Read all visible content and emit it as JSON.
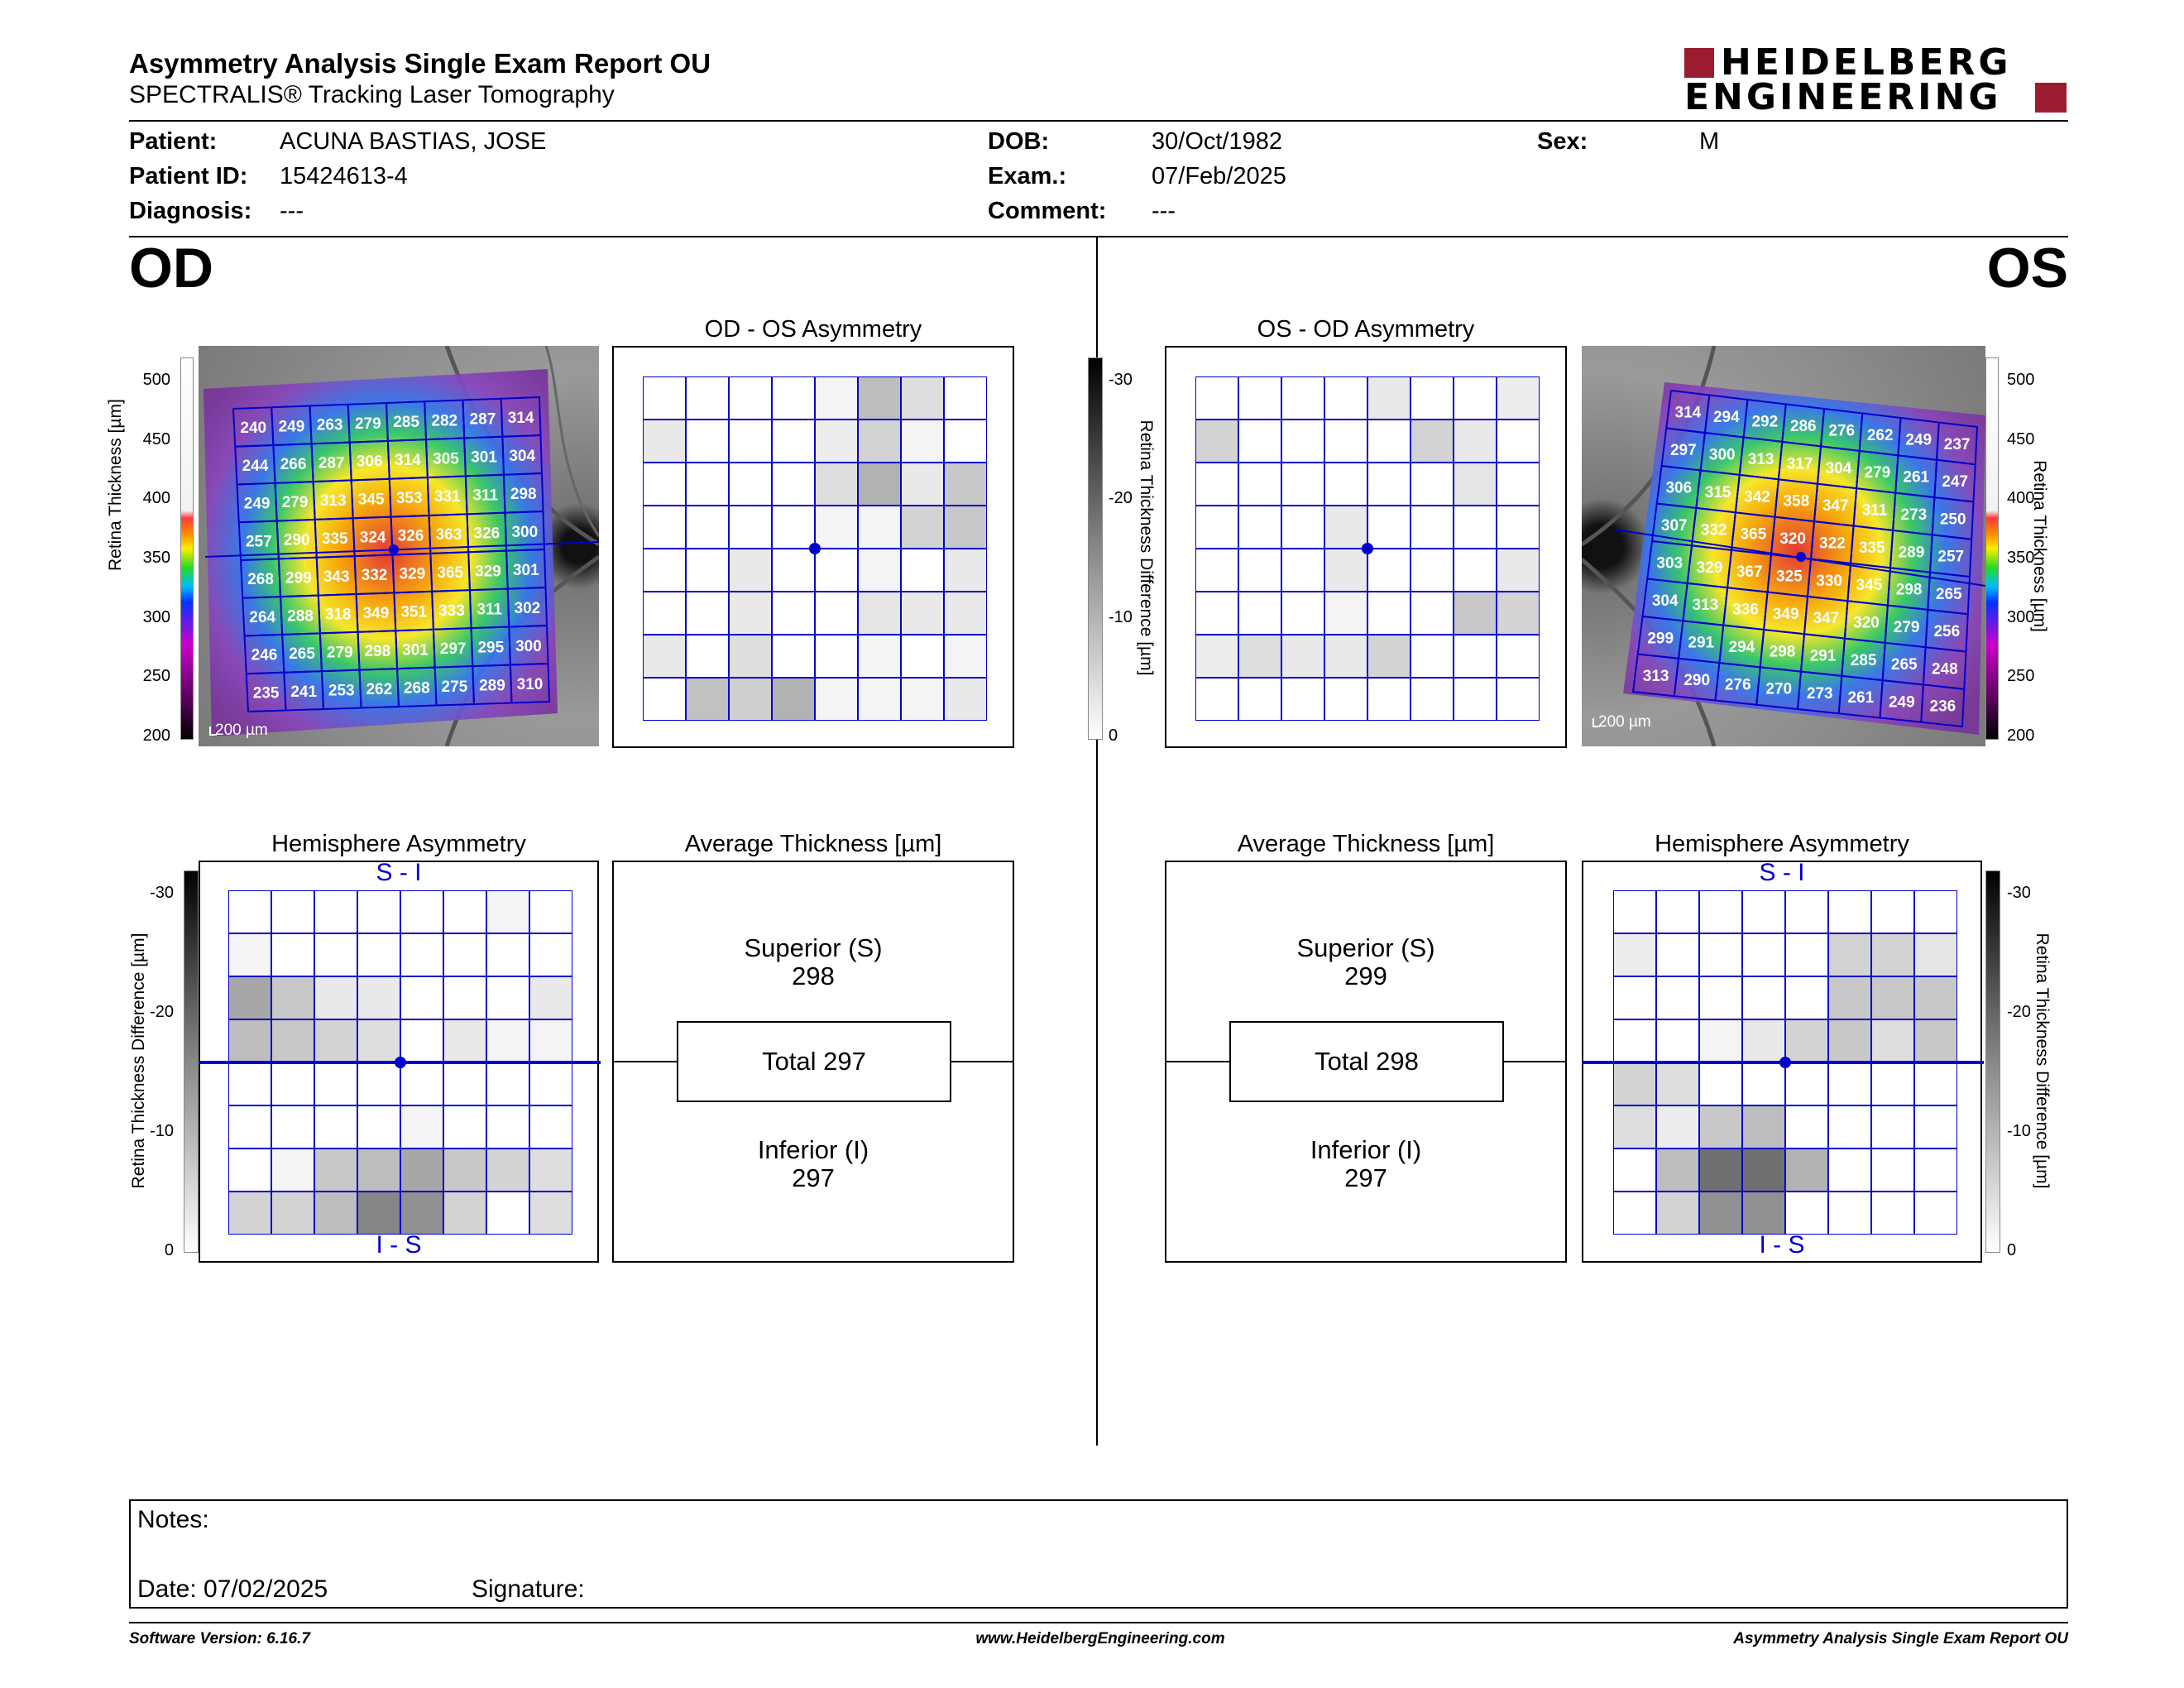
{
  "header": {
    "title": "Asymmetry Analysis Single Exam Report OU",
    "subtitle": "SPECTRALIS® Tracking Laser Tomography",
    "logo_line1": "HEIDELBERG",
    "logo_line2": "ENGINEERING"
  },
  "patient": {
    "patient_label": "Patient:",
    "patient_value": "ACUNA BASTIAS, JOSE",
    "id_label": "Patient ID:",
    "id_value": "15424613-4",
    "diagnosis_label": "Diagnosis:",
    "diagnosis_value": "---",
    "dob_label": "DOB:",
    "dob_value": "30/Oct/1982",
    "exam_label": "Exam.:",
    "exam_value": "07/Feb/2025",
    "comment_label": "Comment:",
    "comment_value": "---",
    "sex_label": "Sex:",
    "sex_value": "M"
  },
  "eyes": {
    "left_label": "OD",
    "right_label": "OS"
  },
  "colors": {
    "grid_blue": "#0000cc",
    "accent_red": "#9b1b30"
  },
  "scales": {
    "thickness_ticks": [
      "500",
      "450",
      "400",
      "350",
      "300",
      "250",
      "200"
    ],
    "thickness_axis": "Retina Thickness [µm]",
    "diff_ticks": [
      "-30",
      "-20",
      "-10",
      "0"
    ],
    "diff_axis": "Retina Thickness Difference [µm]",
    "scalebar": "200 µm"
  },
  "od": {
    "thickness_grid": [
      [
        240,
        249,
        263,
        279,
        285,
        282,
        287,
        314
      ],
      [
        244,
        266,
        287,
        306,
        314,
        305,
        301,
        304
      ],
      [
        249,
        279,
        313,
        345,
        353,
        331,
        311,
        298
      ],
      [
        257,
        290,
        335,
        324,
        326,
        363,
        326,
        300
      ],
      [
        268,
        299,
        343,
        332,
        329,
        365,
        329,
        301
      ],
      [
        264,
        288,
        318,
        349,
        351,
        333,
        311,
        302
      ],
      [
        246,
        265,
        279,
        298,
        301,
        297,
        295,
        300
      ],
      [
        235,
        241,
        253,
        262,
        268,
        275,
        289,
        310
      ]
    ],
    "asymmetry_title": "OD - OS Asymmetry",
    "asymmetry_grid": [
      [
        0,
        0,
        0,
        0,
        0.05,
        0.3,
        0.15,
        0
      ],
      [
        0.1,
        0,
        0,
        0,
        0.08,
        0.2,
        0.05,
        0
      ],
      [
        0,
        0,
        0,
        0,
        0.15,
        0.35,
        0.1,
        0.25
      ],
      [
        0,
        0,
        0,
        0,
        0.05,
        0.05,
        0.2,
        0.25
      ],
      [
        0,
        0,
        0.1,
        0,
        0,
        0.05,
        0,
        0.1
      ],
      [
        0,
        0,
        0.1,
        0,
        0,
        0.12,
        0.1,
        0.1
      ],
      [
        0.1,
        0,
        0.15,
        0,
        0,
        0.05,
        0,
        0.05
      ],
      [
        0,
        0.28,
        0.22,
        0.35,
        0.05,
        0.05,
        0.05,
        0.1
      ]
    ],
    "hemi_title": "Hemisphere Asymmetry",
    "hemi_top": "S - I",
    "hemi_bottom": "I - S",
    "hemi_grid": [
      [
        0,
        0,
        0,
        0,
        0,
        0,
        0.05,
        0
      ],
      [
        0.05,
        0,
        0,
        0,
        0,
        0,
        0,
        0
      ],
      [
        0.4,
        0.25,
        0.1,
        0.1,
        0,
        0,
        0,
        0.1
      ],
      [
        0.3,
        0.25,
        0.2,
        0.15,
        0,
        0.1,
        0.05,
        0.05
      ],
      [
        0,
        0,
        0,
        0,
        0,
        0,
        0,
        0
      ],
      [
        0,
        0,
        0,
        0,
        0.05,
        0,
        0,
        0
      ],
      [
        0,
        0.05,
        0.25,
        0.3,
        0.4,
        0.25,
        0.2,
        0.15
      ],
      [
        0.2,
        0.2,
        0.3,
        0.55,
        0.5,
        0.2,
        0,
        0.15
      ]
    ],
    "avg_title": "Average Thickness [µm]",
    "superior_label": "Superior (S)",
    "superior_value": "298",
    "total_label": "Total 297",
    "inferior_label": "Inferior (I)",
    "inferior_value": "297"
  },
  "os": {
    "thickness_grid": [
      [
        314,
        294,
        292,
        286,
        276,
        262,
        249,
        237
      ],
      [
        297,
        300,
        313,
        317,
        304,
        279,
        261,
        247
      ],
      [
        306,
        315,
        342,
        358,
        347,
        311,
        273,
        250
      ],
      [
        307,
        332,
        365,
        320,
        322,
        335,
        289,
        257
      ],
      [
        303,
        329,
        367,
        325,
        330,
        345,
        298,
        265
      ],
      [
        304,
        313,
        336,
        349,
        347,
        320,
        279,
        256
      ],
      [
        299,
        291,
        294,
        298,
        291,
        285,
        265,
        248
      ],
      [
        313,
        290,
        276,
        270,
        273,
        261,
        249,
        236
      ]
    ],
    "asymmetry_title": "OS - OD Asymmetry",
    "asymmetry_grid": [
      [
        0,
        0,
        0,
        0,
        0.1,
        0,
        0,
        0.08
      ],
      [
        0.2,
        0,
        0,
        0,
        0,
        0.2,
        0.1,
        0
      ],
      [
        0,
        0,
        0,
        0,
        0,
        0,
        0.12,
        0
      ],
      [
        0,
        0,
        0,
        0.1,
        0,
        0,
        0,
        0
      ],
      [
        0,
        0,
        0,
        0.1,
        0,
        0,
        0,
        0.1
      ],
      [
        0,
        0,
        0,
        0.05,
        0,
        0,
        0.25,
        0.2
      ],
      [
        0.08,
        0.15,
        0.1,
        0.1,
        0.2,
        0,
        0,
        0
      ],
      [
        0,
        0,
        0,
        0,
        0,
        0,
        0,
        0
      ]
    ],
    "hemi_title": "Hemisphere Asymmetry",
    "hemi_top": "S - I",
    "hemi_bottom": "I - S",
    "hemi_grid": [
      [
        0,
        0,
        0,
        0,
        0,
        0,
        0,
        0
      ],
      [
        0.08,
        0,
        0,
        0,
        0,
        0.2,
        0.2,
        0.12
      ],
      [
        0,
        0,
        0,
        0,
        0,
        0.25,
        0.25,
        0.25
      ],
      [
        0,
        0,
        0.05,
        0.1,
        0.2,
        0.25,
        0.15,
        0.25
      ],
      [
        0.2,
        0.15,
        0,
        0,
        0,
        0,
        0,
        0
      ],
      [
        0.15,
        0.08,
        0.25,
        0.3,
        0,
        0,
        0,
        0
      ],
      [
        0,
        0.3,
        0.65,
        0.65,
        0.35,
        0,
        0,
        0
      ],
      [
        0,
        0.2,
        0.5,
        0.5,
        0,
        0,
        0,
        0
      ]
    ],
    "avg_title": "Average Thickness [µm]",
    "superior_label": "Superior (S)",
    "superior_value": "299",
    "total_label": "Total 298",
    "inferior_label": "Inferior (I)",
    "inferior_value": "297"
  },
  "notes": {
    "notes_label": "Notes:",
    "date_label": "Date: 07/02/2025",
    "signature_label": "Signature:"
  },
  "footer": {
    "version": "Software Version: 6.16.7",
    "url": "www.HeidelbergEngineering.com",
    "report": "Asymmetry Analysis Single Exam Report OU"
  }
}
